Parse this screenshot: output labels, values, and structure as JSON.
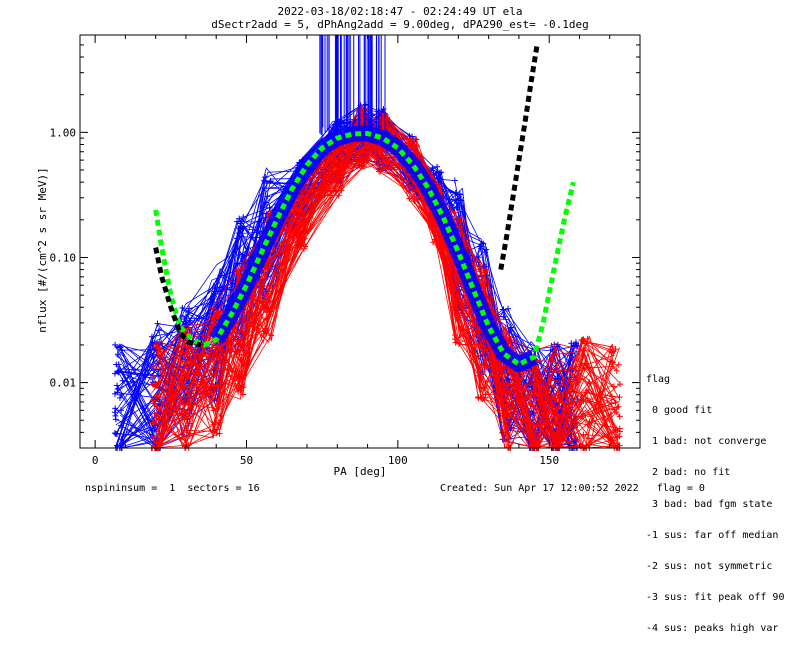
{
  "chart_data": {
    "type": "scatter",
    "title": "2022-03-18/02:18:47 - 02:24:49 UT ela",
    "subtitle": "dSectr2add = 5, dPhAng2add = 9.00deg, dPA290_est=  -0.1deg",
    "xlabel": "PA [deg]",
    "ylabel": "nflux [#/(cm^2 s sr MeV)]",
    "xlim": [
      -5,
      180
    ],
    "ylim": [
      0.003,
      6
    ],
    "yscale": "log",
    "x_ticks": [
      0,
      50,
      100,
      150
    ],
    "y_ticks": [
      0.01,
      0.1,
      1
    ],
    "y_tick_labels": [
      "0.01",
      "0.10",
      "1.00"
    ],
    "grid": false,
    "series": [
      {
        "color": "#0000ff",
        "style": "lines+crosses",
        "x": [
          8,
          20,
          30,
          40,
          48,
          57,
          68,
          80,
          88,
          95,
          105,
          113,
          120,
          128,
          136,
          145,
          152,
          158
        ],
        "y": [
          0.006,
          0.009,
          0.013,
          0.025,
          0.06,
          0.15,
          0.35,
          0.7,
          0.95,
          0.9,
          0.55,
          0.3,
          0.12,
          0.04,
          0.012,
          0.006,
          0.006,
          0.006
        ]
      },
      {
        "color": "#ff0000",
        "style": "lines+crosses",
        "x": [
          20,
          30,
          40,
          48,
          57,
          68,
          80,
          88,
          95,
          105,
          113,
          120,
          128,
          136,
          145,
          152,
          162,
          172
        ],
        "y": [
          0.006,
          0.008,
          0.012,
          0.025,
          0.07,
          0.2,
          0.55,
          0.9,
          0.85,
          0.5,
          0.22,
          0.07,
          0.025,
          0.008,
          0.005,
          0.006,
          0.007,
          0.006
        ]
      },
      {
        "color": "#00ff00",
        "style": "dashed-fit",
        "x": [
          20,
          22,
          25,
          28,
          32,
          36,
          40,
          45,
          50,
          55,
          60,
          65,
          70,
          75,
          80,
          85,
          90,
          95,
          100,
          105,
          110,
          115,
          120,
          125,
          130,
          135,
          140,
          145,
          148,
          152,
          155,
          158
        ],
        "y": [
          0.24,
          0.12,
          0.05,
          0.028,
          0.022,
          0.02,
          0.022,
          0.035,
          0.06,
          0.11,
          0.2,
          0.35,
          0.55,
          0.75,
          0.9,
          0.97,
          0.98,
          0.9,
          0.75,
          0.55,
          0.36,
          0.21,
          0.11,
          0.055,
          0.028,
          0.017,
          0.014,
          0.016,
          0.03,
          0.09,
          0.2,
          0.4
        ]
      },
      {
        "color": "#000000",
        "style": "dashed-fit",
        "x": [
          20,
          22,
          25,
          28,
          31,
          35,
          134,
          136,
          138,
          140,
          142,
          144,
          146
        ],
        "y": [
          0.12,
          0.07,
          0.04,
          0.025,
          0.021,
          0.02,
          0.08,
          0.15,
          0.3,
          0.6,
          1.2,
          2.5,
          5.0
        ]
      }
    ],
    "legend": {
      "title": "flag",
      "entries": [
        " 0 good fit",
        " 1 bad: not converge",
        " 2 bad: no fit",
        " 3 bad: bad fgm state",
        "-1 sus: far off median",
        "-2 sus: not symmetric",
        "-3 sus: fit peak off 90",
        "-4 sus: peaks high var"
      ]
    },
    "footer_left": "nspininsum =  1  sectors = 16",
    "footer_right": "Created: Sun Apr 17 12:00:52 2022   flag = 0"
  }
}
